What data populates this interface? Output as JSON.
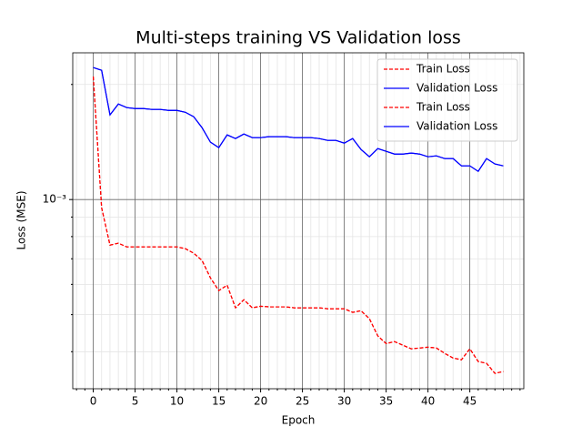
{
  "chart_data": {
    "type": "line",
    "title": "Multi-steps training VS Validation loss",
    "x_label": "Epoch",
    "y_label": "Loss (MSE)",
    "x": [
      0,
      1,
      2,
      3,
      4,
      5,
      6,
      7,
      8,
      9,
      10,
      11,
      12,
      13,
      14,
      15,
      16,
      17,
      18,
      19,
      20,
      21,
      22,
      23,
      24,
      25,
      26,
      27,
      28,
      29,
      30,
      31,
      32,
      33,
      34,
      35,
      36,
      37,
      38,
      39,
      40,
      41,
      42,
      43,
      44,
      45,
      46,
      47,
      48,
      49
    ],
    "series": [
      {
        "name": "Train Loss",
        "color": "#ff0000",
        "dash": true,
        "values": [
          0.002096,
          0.000952,
          0.00076,
          0.000769,
          0.000752,
          0.000752,
          0.000752,
          0.000752,
          0.000752,
          0.000752,
          0.000752,
          0.000744,
          0.000724,
          0.000693,
          0.000624,
          0.000578,
          0.000597,
          0.000521,
          0.000547,
          0.000521,
          0.000526,
          0.000524,
          0.000524,
          0.000524,
          0.000521,
          0.000521,
          0.000521,
          0.000521,
          0.000518,
          0.000518,
          0.000518,
          0.000507,
          0.000512,
          0.000488,
          0.00044,
          0.00042,
          0.000425,
          0.000416,
          0.000407,
          0.000409,
          0.000411,
          0.000409,
          0.000396,
          0.000385,
          0.000381,
          0.000407,
          0.000377,
          0.000373,
          0.000351,
          0.000355
        ]
      },
      {
        "name": "Validation Loss",
        "color": "#0000ff",
        "dash": false,
        "values": [
          0.002214,
          0.002178,
          0.001665,
          0.001778,
          0.00174,
          0.00173,
          0.00173,
          0.001721,
          0.001721,
          0.001711,
          0.001711,
          0.001692,
          0.001647,
          0.001542,
          0.001413,
          0.001367,
          0.001476,
          0.001444,
          0.001484,
          0.001452,
          0.001452,
          0.00146,
          0.00146,
          0.00146,
          0.001452,
          0.001452,
          0.001452,
          0.001444,
          0.001428,
          0.001428,
          0.001405,
          0.001444,
          0.001352,
          0.001294,
          0.001359,
          0.001337,
          0.001315,
          0.001315,
          0.001323,
          0.001315,
          0.001294,
          0.001301,
          0.00128,
          0.00128,
          0.001225,
          0.001225,
          0.001185,
          0.00128,
          0.001239,
          0.001225
        ]
      },
      {
        "name": "Train Loss",
        "color": "#ff0000",
        "dash": true,
        "values": [
          0.002096,
          0.000952,
          0.00076,
          0.000769,
          0.000752,
          0.000752,
          0.000752,
          0.000752,
          0.000752,
          0.000752,
          0.000752,
          0.000744,
          0.000724,
          0.000693,
          0.000624,
          0.000578,
          0.000597,
          0.000521,
          0.000547,
          0.000521,
          0.000526,
          0.000524,
          0.000524,
          0.000524,
          0.000521,
          0.000521,
          0.000521,
          0.000521,
          0.000518,
          0.000518,
          0.000518,
          0.000507,
          0.000512,
          0.000488,
          0.00044,
          0.00042,
          0.000425,
          0.000416,
          0.000407,
          0.000409,
          0.000411,
          0.000409,
          0.000396,
          0.000385,
          0.000381,
          0.000407,
          0.000377,
          0.000373,
          0.000351,
          0.000355
        ]
      },
      {
        "name": "Validation Loss",
        "color": "#0000ff",
        "dash": false,
        "values": [
          0.002214,
          0.002178,
          0.001665,
          0.001778,
          0.00174,
          0.00173,
          0.00173,
          0.001721,
          0.001721,
          0.001711,
          0.001711,
          0.001692,
          0.001647,
          0.001542,
          0.001413,
          0.001367,
          0.001476,
          0.001444,
          0.001484,
          0.001452,
          0.001452,
          0.00146,
          0.00146,
          0.00146,
          0.001452,
          0.001452,
          0.001452,
          0.001444,
          0.001428,
          0.001428,
          0.001405,
          0.001444,
          0.001352,
          0.001294,
          0.001359,
          0.001337,
          0.001315,
          0.001315,
          0.001323,
          0.001315,
          0.001294,
          0.001301,
          0.00128,
          0.00128,
          0.001225,
          0.001225,
          0.001185,
          0.00128,
          0.001239,
          0.001225
        ]
      }
    ],
    "xlim": [
      -2.45,
      51.45
    ],
    "xticks": [
      0,
      5,
      10,
      15,
      20,
      25,
      30,
      35,
      40,
      45
    ],
    "minor_xticks": [
      -2,
      -1,
      1,
      2,
      3,
      4,
      6,
      7,
      8,
      9,
      11,
      12,
      13,
      14,
      16,
      17,
      18,
      19,
      21,
      22,
      23,
      24,
      26,
      27,
      28,
      29,
      31,
      32,
      33,
      34,
      36,
      37,
      38,
      39,
      41,
      42,
      43,
      44,
      46,
      47,
      48,
      49,
      50,
      51
    ],
    "ylim": [
      0.00032,
      0.00242
    ],
    "y_log": true,
    "yticks": [
      {
        "value": 0.001,
        "label": "10⁻³"
      }
    ],
    "minor_yticks": [
      0.0004,
      0.0005,
      0.0006,
      0.0007,
      0.0008,
      0.0009,
      0.002
    ],
    "grid": true,
    "legend": "upper right"
  }
}
